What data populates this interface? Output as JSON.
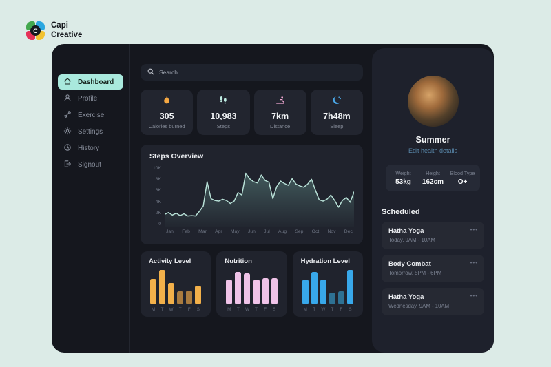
{
  "brand": {
    "name_line1": "Capi",
    "name_line2": "Creative",
    "monogram": "C"
  },
  "sidebar": {
    "items": [
      {
        "label": "Dashboard",
        "icon": "home-icon",
        "active": true
      },
      {
        "label": "Profile",
        "icon": "user-icon",
        "active": false
      },
      {
        "label": "Exercise",
        "icon": "dumbbell-icon",
        "active": false
      },
      {
        "label": "Settings",
        "icon": "gear-icon",
        "active": false
      },
      {
        "label": "History",
        "icon": "history-icon",
        "active": false
      },
      {
        "label": "Signout",
        "icon": "signout-icon",
        "active": false
      }
    ]
  },
  "search": {
    "placeholder": "Search",
    "icon": "search-icon"
  },
  "stats": [
    {
      "icon": "flame-icon",
      "value": "305",
      "label": "Calories burned",
      "color": "#F5A843"
    },
    {
      "icon": "footprints-icon",
      "value": "10,983",
      "label": "Steps",
      "color": "#BFEDE3"
    },
    {
      "icon": "distance-icon",
      "value": "7km",
      "label": "Distance",
      "color": "#F2A9D4"
    },
    {
      "icon": "moon-icon",
      "value": "7h48m",
      "label": "Sleep",
      "color": "#4BA9EA"
    }
  ],
  "chart_data": [
    {
      "type": "area",
      "title": "Steps Overview",
      "categories": [
        "Jan",
        "Feb",
        "Mar",
        "Apr",
        "May",
        "Jun",
        "Jul",
        "Aug",
        "Sep",
        "Oct",
        "Nov",
        "Dec"
      ],
      "yticks": [
        "10K",
        "8K",
        "6K",
        "4K",
        "2K",
        "0"
      ],
      "ylim": [
        0,
        10000
      ],
      "values": [
        2000,
        2300,
        1900,
        2200,
        1800,
        2100,
        1750,
        1800,
        1750,
        2500,
        3400,
        7400,
        4600,
        4300,
        4200,
        4500,
        4300,
        3800,
        4200,
        5600,
        5200,
        8800,
        7900,
        7400,
        7200,
        8500,
        7600,
        7300,
        4600,
        6600,
        7500,
        7100,
        6800,
        7900,
        7000,
        6700,
        6500,
        7000,
        7800,
        6000,
        4400,
        4200,
        4500,
        5200,
        4300,
        3200,
        4300,
        4800,
        4000,
        5700
      ],
      "line_color": "#B9E2D8",
      "fill_color": "#8FD8C8",
      "grid": false,
      "legend": null
    },
    {
      "type": "bar",
      "title": "Activity Level",
      "categories": [
        "M",
        "T",
        "W",
        "T",
        "F",
        "S"
      ],
      "values": [
        75,
        100,
        62,
        38,
        40,
        55
      ],
      "dim": [
        false,
        false,
        false,
        true,
        true,
        false
      ],
      "color": "#F2B04A",
      "dim_color": "#A97B3F",
      "ylim": [
        0,
        100
      ]
    },
    {
      "type": "bar",
      "title": "Nutrition",
      "categories": [
        "M",
        "T",
        "W",
        "T",
        "F",
        "S"
      ],
      "values": [
        72,
        95,
        90,
        72,
        76,
        76
      ],
      "dim": [
        false,
        false,
        false,
        false,
        false,
        false
      ],
      "color": "#F0C3E8",
      "dim_color": "#B38FAC",
      "ylim": [
        0,
        100
      ]
    },
    {
      "type": "bar",
      "title": "Hydration Level",
      "categories": [
        "M",
        "T",
        "W",
        "T",
        "F",
        "S"
      ],
      "values": [
        72,
        95,
        72,
        35,
        38,
        100
      ],
      "dim": [
        false,
        false,
        false,
        true,
        true,
        false
      ],
      "color": "#38A8EA",
      "dim_color": "#2E7193",
      "ylim": [
        0,
        100
      ]
    }
  ],
  "profile": {
    "name": "Summer",
    "edit_link": "Edit health details",
    "metrics": [
      {
        "label": "Weight",
        "value": "53kg"
      },
      {
        "label": "Height",
        "value": "162cm"
      },
      {
        "label": "Blood Type",
        "value": "O+"
      }
    ]
  },
  "scheduled": {
    "title": "Scheduled",
    "menu_glyph": "•••",
    "items": [
      {
        "title": "Hatha Yoga",
        "time": "Today, 9AM - 10AM"
      },
      {
        "title": "Body Combat",
        "time": "Tomorrow, 5PM - 6PM"
      },
      {
        "title": "Hatha Yoga",
        "time": "Wednesday, 9AM - 10AM"
      }
    ]
  },
  "colors": {
    "page_bg": "#DCEBE7",
    "window_bg": "#15171E",
    "panel_bg": "#1E212C",
    "card_bg": "#20232D",
    "accent_mint": "#A9E9DD",
    "link_blue": "#5886A8"
  }
}
